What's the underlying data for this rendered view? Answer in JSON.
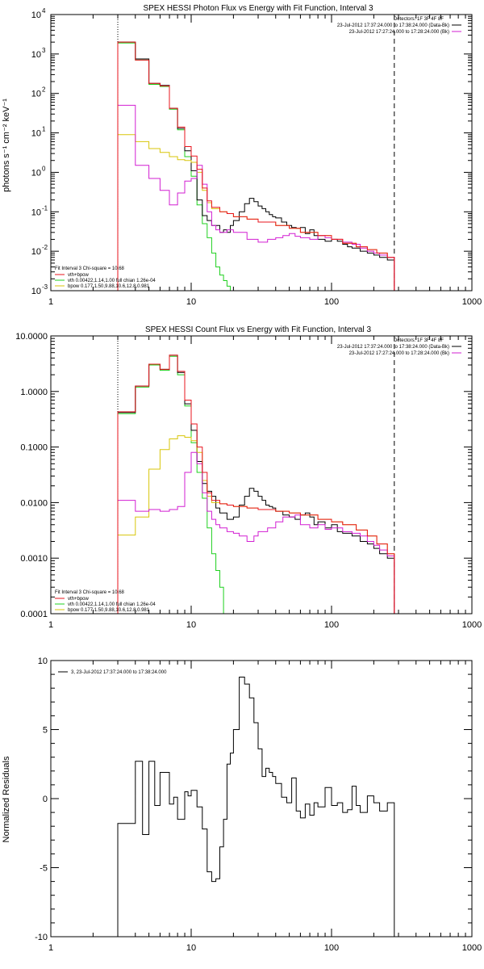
{
  "colors": {
    "data": "#000000",
    "total": "#e8141e",
    "vth": "#1fd01f",
    "background": "#d21fd2",
    "bpow": "#d8c60a"
  },
  "chart_data": [
    {
      "type": "line",
      "scale": "log-log",
      "title": "SPEX HESSI Photon Flux vs Energy with Fit Function, Interval 3",
      "ylabel": "photons s⁻¹ cm⁻² keV⁻¹",
      "xlim": [
        1,
        1000
      ],
      "ylim": [
        0.001,
        10000
      ],
      "xticks": [
        {
          "v": 1,
          "label": "1"
        },
        {
          "v": 10,
          "label": "10"
        },
        {
          "v": 100,
          "label": "100"
        },
        {
          "v": 1000,
          "label": "1000"
        }
      ],
      "yticks": [
        {
          "v": 0.001,
          "mant": "10",
          "exp": "-3"
        },
        {
          "v": 0.01,
          "mant": "10",
          "exp": "-2"
        },
        {
          "v": 0.1,
          "mant": "10",
          "exp": "-1"
        },
        {
          "v": 1,
          "mant": "10",
          "exp": "0"
        },
        {
          "v": 10,
          "mant": "10",
          "exp": "1"
        },
        {
          "v": 100,
          "mant": "10",
          "exp": "2"
        },
        {
          "v": 1000,
          "mant": "10",
          "exp": "3"
        },
        {
          "v": 10000,
          "mant": "10",
          "exp": "4"
        }
      ],
      "vlines": [
        {
          "x": 3,
          "style": "dotted"
        },
        {
          "x": 280,
          "style": "dashed"
        }
      ],
      "legend_right": {
        "placement": "top-right",
        "header": "Detectors: 1F 3F 4F 8F",
        "entries": [
          {
            "text": "23-Jul-2012 17:37:24.000 to 17:38:24.000 (Data-Bk)",
            "color": "#000000"
          },
          {
            "text": "23-Jul-2012 17:27:24.000 to 17:28:24.000 (Bk)",
            "color": "#d21fd2"
          }
        ]
      },
      "legend_left": {
        "placement": "bottom-left",
        "header": "Fit Interval 3   Chi-square = 10.68",
        "entries": [
          {
            "text": "vth+bpow",
            "color": "#e8141e"
          },
          {
            "text": "vth 0.00422,1.14,1.00  full chian 1.26e-04",
            "color": "#1fd01f"
          },
          {
            "text": "bpow 0.177,1.50,9.88,10.6,12.8,0.981",
            "color": "#d8c60a"
          }
        ]
      },
      "series": [
        {
          "color": "#1fd01f",
          "x0": 3,
          "edges": [
            3,
            4,
            5,
            6,
            7,
            8,
            9,
            10,
            11,
            12,
            13,
            14,
            15,
            16,
            17,
            18,
            19,
            20
          ],
          "values": [
            1900,
            700,
            170,
            150,
            40,
            12,
            2.5,
            0.8,
            0.15,
            0.05,
            0.022,
            0.009,
            0.004,
            0.0025,
            0.0018,
            0.0013,
            0.0009
          ]
        },
        {
          "color": "#000000",
          "x0": 3,
          "edges": [
            3,
            4,
            5,
            6,
            7,
            8,
            9,
            10,
            11,
            12,
            13,
            14,
            15,
            16,
            17,
            18,
            19,
            20,
            22,
            24,
            26,
            28,
            30,
            32,
            34,
            36,
            38,
            40,
            44,
            48,
            52,
            56,
            60,
            65,
            70,
            75,
            80,
            90,
            100,
            110,
            120,
            130,
            140,
            150,
            160,
            180,
            200,
            220,
            250,
            280
          ],
          "values": [
            2000,
            750,
            180,
            160,
            42,
            13,
            3.5,
            1.1,
            0.2,
            0.08,
            0.06,
            0.045,
            0.045,
            0.03,
            0.035,
            0.03,
            0.045,
            0.06,
            0.1,
            0.16,
            0.22,
            0.18,
            0.14,
            0.12,
            0.1,
            0.085,
            0.075,
            0.07,
            0.055,
            0.045,
            0.04,
            0.038,
            0.04,
            0.028,
            0.035,
            0.025,
            0.02,
            0.018,
            0.02,
            0.018,
            0.015,
            0.013,
            0.012,
            0.012,
            0.01,
            0.009,
            0.008,
            0.007,
            0.006
          ]
        },
        {
          "color": "#d8c60a",
          "x0": 3,
          "edges": [
            3,
            4,
            5,
            6,
            7,
            8,
            9,
            10,
            11,
            12,
            13,
            14,
            16,
            18,
            20,
            25,
            30,
            40,
            50,
            60,
            80,
            100,
            120,
            150,
            180,
            210,
            250,
            280
          ],
          "values": [
            9,
            6,
            4,
            3.2,
            2.5,
            2.1,
            2.0,
            1.8,
            1.0,
            0.35,
            0.17,
            0.12,
            0.1,
            0.09,
            0.075,
            0.065,
            0.055,
            0.045,
            0.038,
            0.03,
            0.025,
            0.02,
            0.016,
            0.013,
            0.011,
            0.009,
            0.007
          ]
        },
        {
          "color": "#d21fd2",
          "x0": 3,
          "edges": [
            3,
            4,
            5,
            6,
            7,
            8,
            9,
            10,
            11,
            12,
            13,
            14,
            15,
            16,
            18,
            20,
            25,
            30,
            35,
            40,
            45,
            50,
            55,
            60,
            70,
            80,
            90,
            100,
            120,
            140,
            160,
            180,
            200,
            220,
            250,
            280
          ],
          "values": [
            50,
            1.5,
            0.7,
            0.35,
            0.15,
            0.3,
            0.6,
            0.7,
            1.5,
            0.5,
            0.1,
            0.045,
            0.035,
            0.03,
            0.035,
            0.03,
            0.02,
            0.017,
            0.02,
            0.022,
            0.025,
            0.028,
            0.024,
            0.022,
            0.02,
            0.025,
            0.022,
            0.02,
            0.017,
            0.015,
            0.012,
            0.01,
            0.009,
            0.008,
            0.007
          ]
        },
        {
          "color": "#e8141e",
          "x0": 3,
          "edges": [
            3,
            4,
            5,
            6,
            7,
            8,
            9,
            10,
            11,
            12,
            13,
            14,
            16,
            18,
            20,
            25,
            30,
            40,
            50,
            60,
            80,
            100,
            120,
            150,
            180,
            210,
            250,
            280
          ],
          "values": [
            2000,
            700,
            180,
            155,
            42,
            14,
            4.5,
            2.6,
            1.2,
            0.4,
            0.19,
            0.13,
            0.1,
            0.09,
            0.075,
            0.065,
            0.055,
            0.045,
            0.038,
            0.03,
            0.025,
            0.02,
            0.016,
            0.013,
            0.011,
            0.009,
            0.007
          ]
        }
      ]
    },
    {
      "type": "line",
      "scale": "log-log",
      "title": "SPEX HESSI Count Flux vs Energy with Fit Function, Interval 3",
      "ylabel": "",
      "xlim": [
        1,
        1000
      ],
      "ylim": [
        0.0001,
        10
      ],
      "xticks": [
        {
          "v": 1,
          "label": "1"
        },
        {
          "v": 10,
          "label": "10"
        },
        {
          "v": 100,
          "label": "100"
        },
        {
          "v": 1000,
          "label": "1000"
        }
      ],
      "yticks": [
        {
          "v": 0.0001,
          "label": "0.0001"
        },
        {
          "v": 0.001,
          "label": "0.0010"
        },
        {
          "v": 0.01,
          "label": "0.0100"
        },
        {
          "v": 0.1,
          "label": "0.1000"
        },
        {
          "v": 1,
          "label": "1.0000"
        },
        {
          "v": 10,
          "label": "10.0000"
        }
      ],
      "vlines": [
        {
          "x": 3,
          "style": "dotted"
        },
        {
          "x": 280,
          "style": "dashed"
        }
      ],
      "legend_right": {
        "placement": "top-right",
        "header": "Detectors: 1F 3F 4F 8F",
        "entries": [
          {
            "text": "23-Jul-2012 17:37:24.000 to 17:38:24.000 (Data-Bk)",
            "color": "#000000"
          },
          {
            "text": "23-Jul-2012 17:27:24.000 to 17:28:24.000 (Bk)",
            "color": "#d21fd2"
          }
        ]
      },
      "legend_left": {
        "placement": "bottom-left",
        "header": "Fit Interval 3   Chi-square = 10.68",
        "entries": [
          {
            "text": "vth+bpow",
            "color": "#e8141e"
          },
          {
            "text": "vth 0.00422,1.14,1.00  full chian 1.26e-04",
            "color": "#1fd01f"
          },
          {
            "text": "bpow 0.177,1.50,9.88,10.6,12.8,0.981",
            "color": "#d8c60a"
          }
        ]
      },
      "series": [
        {
          "color": "#1fd01f",
          "x0": 3,
          "edges": [
            3,
            4,
            5,
            6,
            7,
            8,
            9,
            10,
            11,
            12,
            13,
            14,
            15,
            16,
            17,
            18
          ],
          "values": [
            0.4,
            1.2,
            3.0,
            2.4,
            4.3,
            2.0,
            0.55,
            0.12,
            0.035,
            0.012,
            0.0035,
            0.0012,
            0.0006,
            0.0003,
            0.0001
          ]
        },
        {
          "color": "#000000",
          "x0": 3,
          "edges": [
            3,
            4,
            5,
            6,
            7,
            8,
            9,
            10,
            11,
            12,
            13,
            14,
            15,
            16,
            18,
            20,
            22,
            24,
            26,
            28,
            30,
            32,
            34,
            36,
            38,
            40,
            45,
            50,
            55,
            60,
            65,
            70,
            75,
            80,
            90,
            100,
            110,
            120,
            140,
            160,
            180,
            200,
            220,
            250,
            280
          ],
          "values": [
            0.42,
            1.25,
            3.1,
            2.5,
            4.5,
            2.2,
            0.6,
            0.2,
            0.055,
            0.022,
            0.016,
            0.013,
            0.008,
            0.0065,
            0.005,
            0.0055,
            0.009,
            0.013,
            0.018,
            0.016,
            0.013,
            0.011,
            0.009,
            0.0085,
            0.008,
            0.007,
            0.006,
            0.0055,
            0.005,
            0.006,
            0.0065,
            0.0055,
            0.004,
            0.0045,
            0.0035,
            0.004,
            0.003,
            0.0028,
            0.0025,
            0.002,
            0.0018,
            0.0015,
            0.0012,
            0.001
          ]
        },
        {
          "color": "#d8c60a",
          "x0": 3,
          "edges": [
            3,
            4,
            5,
            6,
            7,
            8,
            9,
            10,
            11,
            12,
            13,
            14,
            16,
            18,
            20,
            25,
            30,
            40,
            50,
            60,
            80,
            100,
            120,
            150,
            180,
            210,
            250,
            280
          ],
          "values": [
            0.0026,
            0.0055,
            0.04,
            0.09,
            0.14,
            0.16,
            0.15,
            0.13,
            0.08,
            0.025,
            0.013,
            0.01,
            0.0095,
            0.009,
            0.0085,
            0.008,
            0.0075,
            0.007,
            0.0065,
            0.006,
            0.005,
            0.0045,
            0.004,
            0.0032,
            0.0025,
            0.0018,
            0.0012
          ]
        },
        {
          "color": "#d21fd2",
          "x0": 3,
          "edges": [
            3,
            4,
            5,
            6,
            7,
            8,
            9,
            10,
            11,
            12,
            13,
            14,
            15,
            16,
            18,
            20,
            22,
            25,
            28,
            30,
            35,
            40,
            45,
            50,
            55,
            60,
            70,
            80,
            90,
            100,
            120,
            140,
            160,
            180,
            200,
            220,
            250,
            280
          ],
          "values": [
            0.011,
            0.007,
            0.0075,
            0.007,
            0.0075,
            0.0085,
            0.035,
            0.08,
            0.05,
            0.015,
            0.007,
            0.005,
            0.004,
            0.0035,
            0.003,
            0.0028,
            0.0025,
            0.002,
            0.0025,
            0.003,
            0.0035,
            0.0045,
            0.0055,
            0.0055,
            0.006,
            0.004,
            0.0035,
            0.004,
            0.0033,
            0.0035,
            0.003,
            0.0028,
            0.0025,
            0.002,
            0.0017,
            0.0014,
            0.0011
          ]
        },
        {
          "color": "#e8141e",
          "x0": 3,
          "edges": [
            3,
            4,
            5,
            6,
            7,
            8,
            9,
            10,
            11,
            12,
            13,
            14,
            16,
            18,
            20,
            25,
            30,
            40,
            50,
            60,
            80,
            100,
            120,
            150,
            180,
            210,
            250,
            280
          ],
          "values": [
            0.43,
            1.25,
            3.1,
            2.5,
            4.5,
            2.3,
            0.7,
            0.26,
            0.1,
            0.035,
            0.015,
            0.011,
            0.0095,
            0.009,
            0.0085,
            0.008,
            0.0075,
            0.007,
            0.0065,
            0.006,
            0.005,
            0.0045,
            0.004,
            0.0032,
            0.0025,
            0.0018,
            0.0012
          ]
        }
      ]
    },
    {
      "type": "line",
      "scale": "log-linear",
      "title": "",
      "ylabel": "Normalized Residuals",
      "xlim": [
        1,
        1000
      ],
      "ylim": [
        -10,
        10
      ],
      "xticks": [
        {
          "v": 1,
          "label": "1"
        },
        {
          "v": 10,
          "label": "10"
        },
        {
          "v": 100,
          "label": "100"
        },
        {
          "v": 1000,
          "label": "1000"
        }
      ],
      "yticks": [
        {
          "v": -10,
          "label": "-10"
        },
        {
          "v": -5,
          "label": "-5"
        },
        {
          "v": 0,
          "label": "0"
        },
        {
          "v": 5,
          "label": "5"
        },
        {
          "v": 10,
          "label": "10"
        }
      ],
      "legend_left": {
        "placement": "top-left",
        "header": "",
        "entries": [
          {
            "text": "3, 23-Jul-2012 17:37:24.000 to 17:38:24.000",
            "color": "#000000"
          }
        ]
      },
      "series": [
        {
          "color": "#000000",
          "x0": 3,
          "drop_to": -10,
          "edges": [
            3,
            4,
            4.5,
            5,
            5.5,
            6,
            7,
            7.5,
            8,
            9,
            9.5,
            10,
            11,
            12,
            13,
            14,
            15,
            16,
            17,
            18,
            19,
            20,
            22,
            24,
            26,
            28,
            30,
            32,
            34,
            36,
            38,
            40,
            44,
            48,
            52,
            56,
            60,
            65,
            70,
            75,
            80,
            90,
            100,
            110,
            120,
            130,
            140,
            150,
            160,
            180,
            200,
            220,
            250,
            280
          ],
          "values": [
            -1.8,
            2.7,
            -2.6,
            2.7,
            -0.5,
            1.9,
            -0.4,
            0.1,
            -1.5,
            0.5,
            0.2,
            0.6,
            -0.6,
            -2.2,
            -5.3,
            -6.0,
            -5.8,
            -3.5,
            -1.5,
            2.5,
            3.3,
            5.0,
            8.8,
            8.3,
            7.3,
            5.5,
            3.6,
            1.6,
            2.2,
            1.9,
            1.6,
            1.1,
            0.1,
            -0.3,
            1.5,
            -0.9,
            -1.4,
            -0.4,
            -1.2,
            -0.3,
            -0.6,
            0.8,
            -0.5,
            -0.3,
            -1.0,
            -0.8,
            0.9,
            -0.5,
            -1.0,
            0.2,
            -0.3,
            -0.9,
            -0.3
          ]
        }
      ]
    }
  ]
}
